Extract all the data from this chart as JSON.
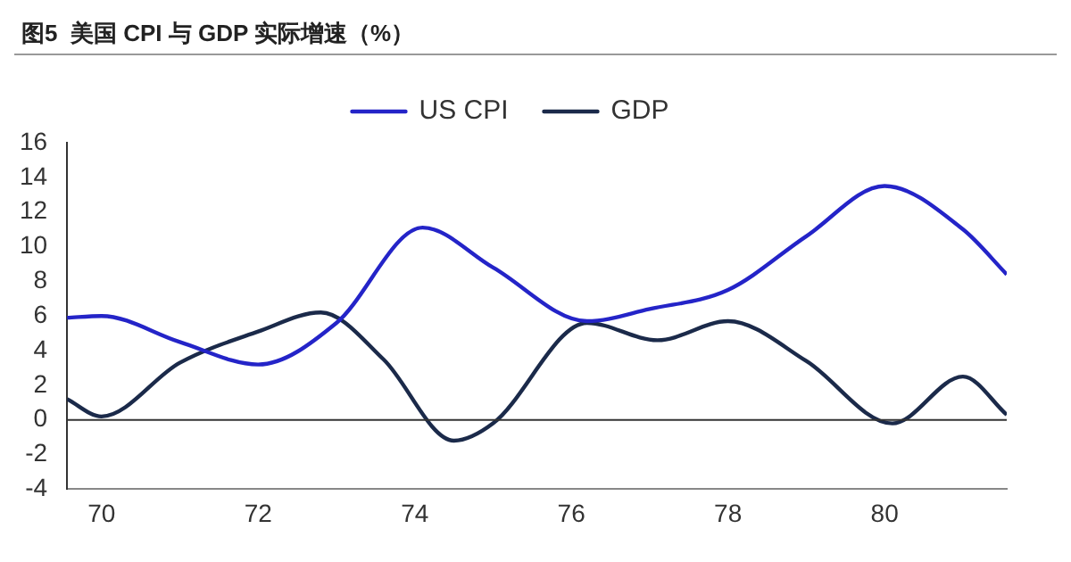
{
  "chart_data": {
    "type": "line",
    "title": "图5  美国 CPI 与 GDP 实际增速（%）",
    "xlim": [
      69.56,
      81.56
    ],
    "xticks": [
      70,
      72,
      74,
      76,
      78,
      80
    ],
    "ylim": [
      -4,
      16
    ],
    "yticks": [
      -4,
      -2,
      0,
      2,
      4,
      6,
      8,
      10,
      12,
      14,
      16
    ],
    "grid": false,
    "ref_lines": [
      {
        "axis": "y",
        "value": 0,
        "color": "#333333",
        "line_style": "solid"
      }
    ],
    "legend": "top",
    "marker": "none",
    "line_style": "solid",
    "series": [
      {
        "name": "US CPI",
        "color": "#2424c8",
        "x": [
          69.56,
          70.0,
          71.0,
          72.0,
          73.0,
          74.1,
          75.0,
          76.2,
          77.0,
          78.0,
          79.0,
          80.0,
          81.0,
          81.56
        ],
        "values": [
          5.9,
          6.0,
          4.5,
          3.2,
          5.6,
          11.1,
          8.8,
          5.7,
          6.4,
          7.5,
          10.6,
          13.5,
          11.0,
          8.4
        ]
      },
      {
        "name": "GDP",
        "color": "#1b2a4a",
        "x": [
          69.56,
          70.0,
          71.0,
          72.0,
          72.8,
          73.6,
          74.5,
          75.0,
          76.2,
          77.1,
          78.0,
          79.0,
          80.1,
          81.0,
          81.56
        ],
        "values": [
          1.2,
          0.2,
          3.3,
          5.1,
          6.2,
          3.5,
          -1.2,
          -0.2,
          5.6,
          4.6,
          5.7,
          3.4,
          -0.2,
          2.5,
          0.3
        ]
      }
    ]
  }
}
